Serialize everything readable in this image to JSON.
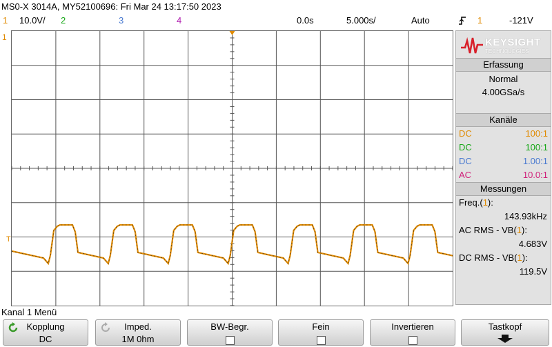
{
  "header": {
    "title": "MS0-X 3014A, MY52100696: Fri Mar 24 13:17:50 2023",
    "ch1_num": "1",
    "ch1_scale": "10.0V/",
    "ch2_num": "2",
    "ch3_num": "3",
    "ch4_num": "4",
    "time_pos": "0.0s",
    "time_scale": "5.000s/",
    "trigger_mode": "Auto",
    "trigger_icon": "trigger-edge-icon",
    "trigger_ch": "1",
    "trigger_level": "-121V"
  },
  "colors": {
    "ch1": "#e08a00",
    "ch2": "#18a818",
    "ch3": "#4a7ad0",
    "ch4": "#b020b0"
  },
  "screen": {
    "ch1_marker": "1",
    "trig_marker": "T"
  },
  "brand": {
    "name": "KEYSIGHT",
    "sub": "TECHNOLOGIES"
  },
  "panel": {
    "erfassung": {
      "title": "Erfassung",
      "mode": "Normal",
      "rate": "4.00GSa/s"
    },
    "kanaele": {
      "title": "Kanäle",
      "rows": [
        {
          "coupling": "DC",
          "probe": "100:1",
          "color": "#e08a00"
        },
        {
          "coupling": "DC",
          "probe": "100:1",
          "color": "#18a818"
        },
        {
          "coupling": "DC",
          "probe": "1.00:1",
          "color": "#4a7ad0"
        },
        {
          "coupling": "AC",
          "probe": "10.0:1",
          "color": "#d0207a"
        }
      ]
    },
    "messungen": {
      "title": "Messungen",
      "items": [
        {
          "label": "Freq.",
          "ch": "1",
          "value": "143.93kHz"
        },
        {
          "label": "AC RMS - VB",
          "ch": "1",
          "value": "4.683V"
        },
        {
          "label": "DC RMS - VB",
          "ch": "1",
          "value": "119.5V"
        }
      ]
    }
  },
  "menu": {
    "title": "Kanal 1 Menü",
    "softkeys": [
      {
        "label": "Kopplung",
        "value": "DC",
        "icon": "rotate-arrow-icon"
      },
      {
        "label": "Imped.",
        "value": "1M 0hm",
        "icon": "rotate-arrow-icon"
      },
      {
        "label": "BW-Begr.",
        "value": ""
      },
      {
        "label": "Fein",
        "value": ""
      },
      {
        "label": "Invertieren",
        "value": ""
      },
      {
        "label": "Tastkopf",
        "value": ""
      }
    ]
  }
}
